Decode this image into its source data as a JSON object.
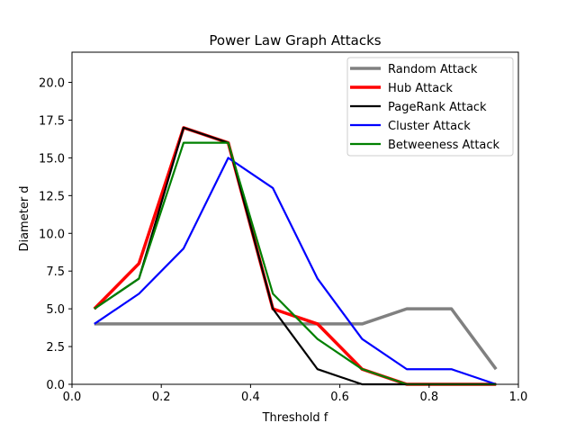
{
  "chart_data": {
    "type": "line",
    "title": "Power Law Graph Attacks",
    "xlabel": "Threshold f",
    "ylabel": "Diameter d",
    "xlim": [
      0.0,
      1.0
    ],
    "ylim": [
      0.0,
      22.0
    ],
    "xticks": [
      "0.0",
      "0.2",
      "0.4",
      "0.6",
      "0.8",
      "1.0"
    ],
    "xtick_values": [
      0.0,
      0.2,
      0.4,
      0.6,
      0.8,
      1.0
    ],
    "yticks": [
      "0.0",
      "2.5",
      "5.0",
      "7.5",
      "10.0",
      "12.5",
      "15.0",
      "17.5",
      "20.0"
    ],
    "ytick_values": [
      0.0,
      2.5,
      5.0,
      7.5,
      10.0,
      12.5,
      15.0,
      17.5,
      20.0
    ],
    "grid": false,
    "legend_position": "top-right",
    "x": [
      0.05,
      0.15,
      0.25,
      0.35,
      0.45,
      0.55,
      0.65,
      0.75,
      0.85,
      0.95
    ],
    "series": [
      {
        "name": "Random Attack",
        "color": "#808080",
        "width": 3.5,
        "values": [
          4,
          4,
          4,
          4,
          4,
          4,
          4,
          5,
          5,
          1
        ]
      },
      {
        "name": "Hub Attack",
        "color": "#ff0000",
        "width": 3.5,
        "values": [
          5,
          8,
          17,
          16,
          5,
          4,
          1,
          0,
          0,
          0
        ]
      },
      {
        "name": "PageRank Attack",
        "color": "#000000",
        "width": 2.2,
        "values": [
          5,
          7,
          17,
          16,
          5,
          1,
          0,
          0,
          0,
          0
        ]
      },
      {
        "name": "Cluster Attack",
        "color": "#0000ff",
        "width": 2.2,
        "values": [
          4,
          6,
          9,
          15,
          13,
          7,
          3,
          1,
          1,
          0
        ]
      },
      {
        "name": "Betweeness Attack",
        "color": "#008000",
        "width": 2.2,
        "values": [
          5,
          7,
          16,
          16,
          6,
          3,
          1,
          0,
          0,
          0
        ]
      }
    ]
  }
}
